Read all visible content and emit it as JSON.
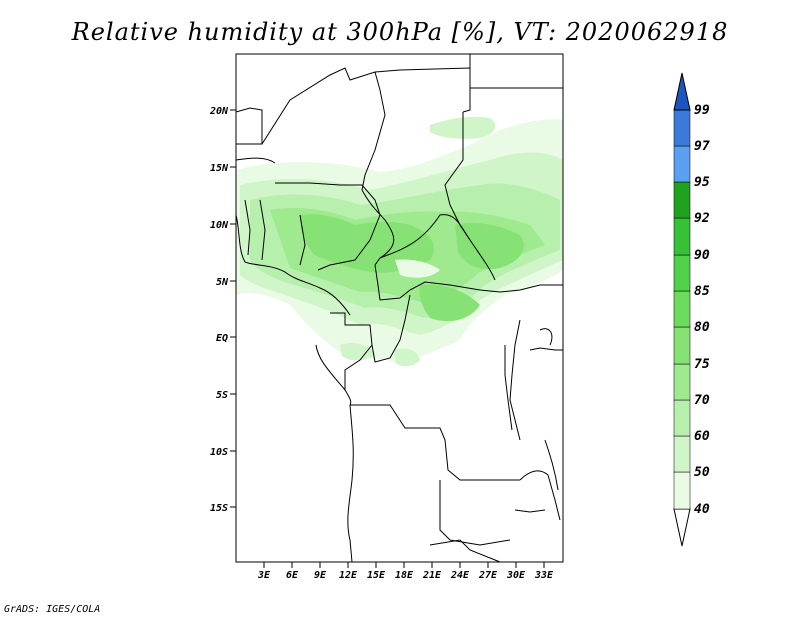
{
  "title": "Relative humidity at 300hPa [%], VT: 2020062918",
  "credit": "GrADS: IGES/COLA",
  "map": {
    "lat_ticks": [
      "20N",
      "15N",
      "10N",
      "5N",
      "EQ",
      "5S",
      "10S",
      "15S"
    ],
    "lon_ticks": [
      "3E",
      "6E",
      "9E",
      "12E",
      "15E",
      "18E",
      "21E",
      "24E",
      "27E",
      "30E",
      "33E"
    ],
    "projection": "latitude-longitude",
    "region": "Central and West Africa"
  },
  "colorbar": {
    "levels": [
      "40",
      "50",
      "60",
      "70",
      "75",
      "80",
      "85",
      "90",
      "92",
      "95",
      "97",
      "99"
    ],
    "colors": [
      "#e9fbe4",
      "#d0f5c8",
      "#b7efac",
      "#9fe98f",
      "#87e275",
      "#6ddb5e",
      "#4fd148",
      "#37c137",
      "#1fa31f",
      "#0f8a0f",
      "#5aa0f0",
      "#3b7ad8",
      "#1b55bf"
    ]
  }
}
